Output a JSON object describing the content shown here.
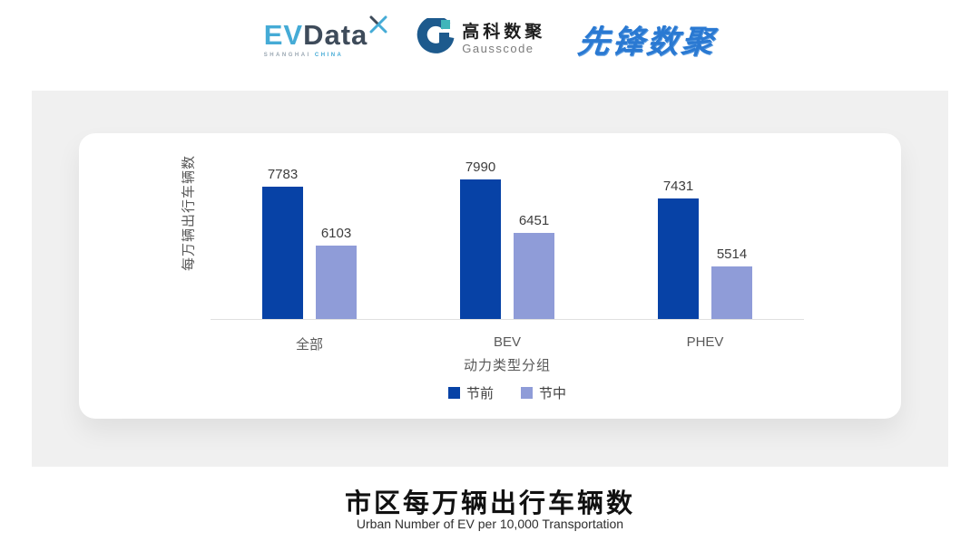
{
  "header": {
    "logos": {
      "evdata": {
        "ev": "EV",
        "data": "Data",
        "sub_left": "SHANGHAI",
        "sub_right": "CHINA"
      },
      "gausscode": {
        "cn": "高科数聚",
        "en": "Gausscode"
      },
      "pioneer": {
        "text": "先锋数聚"
      }
    }
  },
  "chart_data": {
    "type": "bar",
    "categories": [
      "全部",
      "BEV",
      "PHEV"
    ],
    "series": [
      {
        "name": "节前",
        "color": "#0742a6",
        "values": [
          7783,
          7990,
          7431
        ]
      },
      {
        "name": "节中",
        "color": "#8f9cd8",
        "values": [
          6103,
          6451,
          5514
        ]
      }
    ],
    "title": "",
    "xlabel": "动力类型分组",
    "ylabel": "每万辆出行车辆数",
    "ylim": [
      4000,
      8400
    ],
    "grid": false,
    "legend_position": "bottom",
    "bar_labels_shown": true
  },
  "colors": {
    "axis_line": "#e0e0e0",
    "panel_bg": "#f0f0f0",
    "label_gray": "#595959",
    "value_text": "#3d3d3d"
  },
  "footer": {
    "title": "市区每万辆出行车辆数",
    "subtitle": "Urban Number of EV per 10,000 Transportation"
  }
}
